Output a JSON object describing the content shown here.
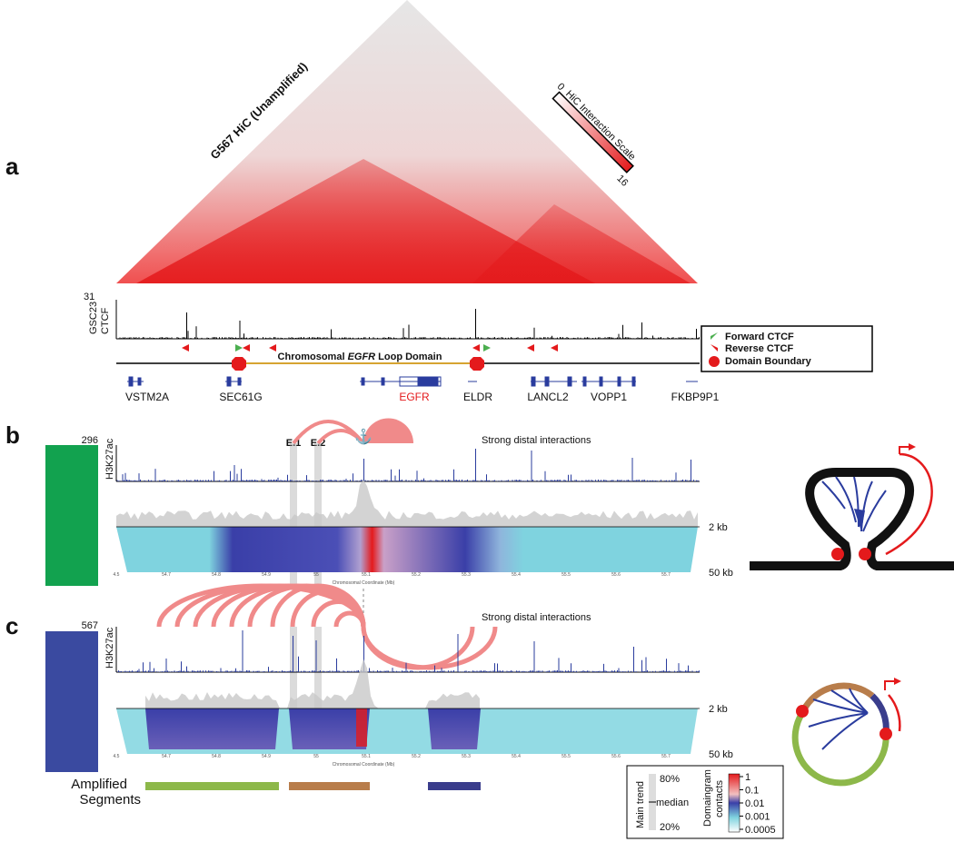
{
  "panel_labels": [
    "a",
    "b",
    "c"
  ],
  "panel_a": {
    "hic_title": "G567 HiC (Unamplified)",
    "scale_title": "HiC Interaction Scale",
    "scale_min": "0",
    "scale_max": "16",
    "ctcf_max": "31",
    "ctcf_track": [
      "GSC23",
      "CTCF"
    ],
    "loop_domain": {
      "prefix": "Chromosomal ",
      "gene": "EGFR",
      "suffix": " Loop Domain"
    },
    "legend": [
      "Forward CTCF",
      "Reverse CTCF",
      "Domain Boundary"
    ],
    "genes": [
      "VSTM2A",
      "SEC61G",
      "EGFR",
      "ELDR",
      "LANCL2",
      "VOPP1",
      "FKBP9P1"
    ]
  },
  "panel_b": {
    "track_max": "296",
    "track_name": "H3K27ac",
    "enhancers": [
      "E.1",
      "E.2"
    ],
    "annotation": "Strong distal interactions",
    "scale_2kb": "2 kb",
    "scale_50kb": "50 kb",
    "axis_title": "Chromosomal Coordinate (Mb)",
    "ticks": [
      "4.5",
      "54.7",
      "54.8",
      "54.9",
      "55",
      "55.1",
      "55.2",
      "55.3",
      "55.4",
      "55.5",
      "55.6",
      "55.7"
    ]
  },
  "panel_c": {
    "track_max": "567",
    "track_name": "H3K27ac",
    "annotation": "Strong distal interactions",
    "scale_2kb": "2 kb",
    "scale_50kb": "50 kb",
    "axis_title": "Chromosomal Coordinate (Mb)",
    "ticks": [
      "4.5",
      "54.7",
      "54.8",
      "54.9",
      "55",
      "55.1",
      "55.2",
      "55.3",
      "55.4",
      "55.5",
      "55.6",
      "55.7"
    ],
    "amplified_label": [
      "Amplified",
      "Segments"
    ]
  },
  "legend_box": {
    "trend_title": "Main trend",
    "trend_labels": [
      "80%",
      "median",
      "20%"
    ],
    "contacts_title": [
      "Domaingram",
      "contacts"
    ],
    "contacts_ticks": [
      "1",
      "0.1",
      "0.01",
      "0.001",
      "0.0005"
    ]
  }
}
